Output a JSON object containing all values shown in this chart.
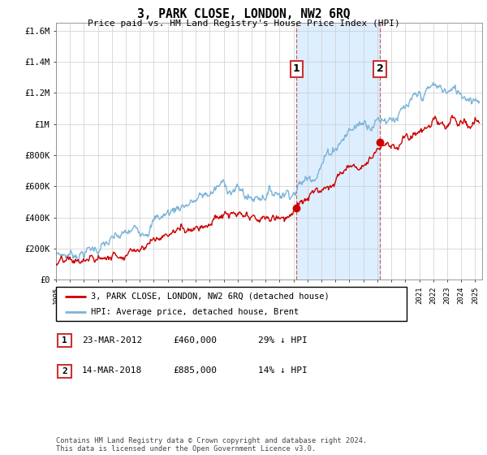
{
  "title": "3, PARK CLOSE, LONDON, NW2 6RQ",
  "subtitle": "Price paid vs. HM Land Registry's House Price Index (HPI)",
  "hpi_color": "#7ab4d8",
  "price_color": "#cc0000",
  "shaded_region_color": "#ddeeff",
  "annotation1": {
    "label": "1",
    "date_str": "23-MAR-2012",
    "price": "£460,000",
    "note": "29% ↓ HPI",
    "x_year": 2012.22,
    "y_val": 460000
  },
  "annotation2": {
    "label": "2",
    "date_str": "14-MAR-2018",
    "price": "£885,000",
    "note": "14% ↓ HPI",
    "x_year": 2018.2,
    "y_val": 885000
  },
  "legend_line1": "3, PARK CLOSE, LONDON, NW2 6RQ (detached house)",
  "legend_line2": "HPI: Average price, detached house, Brent",
  "footnote": "Contains HM Land Registry data © Crown copyright and database right 2024.\nThis data is licensed under the Open Government Licence v3.0.",
  "ylim": [
    0,
    1650000
  ],
  "xlim_start": 1995.0,
  "xlim_end": 2025.5,
  "shaded_x_start": 2012.22,
  "shaded_x_end": 2018.2,
  "yticks": [
    0,
    200000,
    400000,
    600000,
    800000,
    1000000,
    1200000,
    1400000,
    1600000
  ],
  "ytick_labels": [
    "£0",
    "£200K",
    "£400K",
    "£600K",
    "£800K",
    "£1M",
    "£1.2M",
    "£1.4M",
    "£1.6M"
  ],
  "hpi_base_points": [
    [
      1995.0,
      155000
    ],
    [
      1996.0,
      168000
    ],
    [
      1997.0,
      185000
    ],
    [
      1998.0,
      210000
    ],
    [
      1999.0,
      240000
    ],
    [
      2000.0,
      280000
    ],
    [
      2001.0,
      330000
    ],
    [
      2002.0,
      390000
    ],
    [
      2003.0,
      430000
    ],
    [
      2004.0,
      490000
    ],
    [
      2005.0,
      510000
    ],
    [
      2006.0,
      555000
    ],
    [
      2007.0,
      610000
    ],
    [
      2008.0,
      580000
    ],
    [
      2009.0,
      520000
    ],
    [
      2010.0,
      570000
    ],
    [
      2011.0,
      570000
    ],
    [
      2012.0,
      590000
    ],
    [
      2013.0,
      650000
    ],
    [
      2014.0,
      760000
    ],
    [
      2015.0,
      870000
    ],
    [
      2016.0,
      960000
    ],
    [
      2017.0,
      1020000
    ],
    [
      2018.0,
      1040000
    ],
    [
      2019.0,
      1060000
    ],
    [
      2020.0,
      1080000
    ],
    [
      2021.0,
      1150000
    ],
    [
      2022.0,
      1230000
    ],
    [
      2023.0,
      1210000
    ],
    [
      2024.0,
      1200000
    ],
    [
      2025.3,
      1190000
    ]
  ],
  "price_base_points": [
    [
      1995.0,
      100000
    ],
    [
      1996.0,
      108000
    ],
    [
      1997.0,
      120000
    ],
    [
      1998.0,
      135000
    ],
    [
      1999.0,
      155000
    ],
    [
      2000.0,
      185000
    ],
    [
      2001.0,
      220000
    ],
    [
      2002.0,
      265000
    ],
    [
      2003.0,
      295000
    ],
    [
      2004.0,
      330000
    ],
    [
      2005.0,
      355000
    ],
    [
      2006.0,
      375000
    ],
    [
      2007.0,
      415000
    ],
    [
      2008.0,
      400000
    ],
    [
      2009.0,
      370000
    ],
    [
      2010.0,
      390000
    ],
    [
      2011.0,
      400000
    ],
    [
      2012.22,
      460000
    ],
    [
      2013.0,
      510000
    ],
    [
      2014.0,
      590000
    ],
    [
      2015.0,
      660000
    ],
    [
      2016.0,
      720000
    ],
    [
      2017.0,
      760000
    ],
    [
      2018.2,
      885000
    ],
    [
      2019.0,
      870000
    ],
    [
      2020.0,
      890000
    ],
    [
      2021.0,
      940000
    ],
    [
      2022.0,
      1000000
    ],
    [
      2023.0,
      990000
    ],
    [
      2024.0,
      1000000
    ],
    [
      2025.3,
      990000
    ]
  ]
}
